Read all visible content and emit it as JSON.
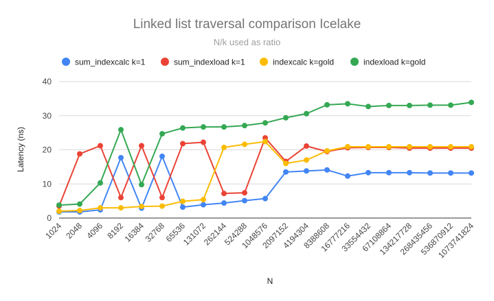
{
  "chart_data": {
    "type": "line",
    "title": "Linked list traversal comparison Icelake",
    "subtitle": "N/k used as ratio",
    "xlabel": "N",
    "ylabel": "Latency (ns)",
    "ylim": [
      0,
      40
    ],
    "yticks": [
      0,
      10,
      20,
      30,
      40
    ],
    "grid": true,
    "legend_position": "top",
    "categories": [
      "1024",
      "2048",
      "4096",
      "8192",
      "16384",
      "32768",
      "65536",
      "131072",
      "262144",
      "524288",
      "1048576",
      "2097152",
      "4194304",
      "8388608",
      "16777216",
      "33554432",
      "67108864",
      "134217728",
      "268435456",
      "536870912",
      "1073741824"
    ],
    "series": [
      {
        "name": "sum_indexcalc k=1",
        "color": "#4285f4",
        "values": [
          1.8,
          1.8,
          2.4,
          17.7,
          2.9,
          18.1,
          3.2,
          3.9,
          4.4,
          5.1,
          5.7,
          13.5,
          13.8,
          14.1,
          12.3,
          13.3,
          13.3,
          13.3,
          13.2,
          13.2,
          13.2
        ]
      },
      {
        "name": "sum_indexload k=1",
        "color": "#ea4335",
        "values": [
          3.5,
          18.8,
          21.2,
          6.0,
          21.2,
          6.0,
          21.8,
          22.2,
          7.2,
          7.4,
          23.5,
          16.6,
          21.1,
          19.5,
          20.6,
          20.7,
          20.7,
          20.5,
          20.5,
          20.5,
          20.5
        ]
      },
      {
        "name": "indexcalc k=gold",
        "color": "#fbbc04",
        "values": [
          2.0,
          2.2,
          3.0,
          3.0,
          3.4,
          3.5,
          4.9,
          5.4,
          20.7,
          21.6,
          22.4,
          16.0,
          17.0,
          19.7,
          20.9,
          20.9,
          20.9,
          20.9,
          20.9,
          20.9,
          20.9
        ]
      },
      {
        "name": "indexload k=gold",
        "color": "#34a853",
        "values": [
          3.8,
          4.1,
          10.3,
          25.9,
          9.8,
          24.7,
          26.4,
          26.7,
          26.7,
          27.1,
          27.9,
          29.4,
          30.6,
          33.2,
          33.5,
          32.7,
          33.0,
          33.0,
          33.1,
          33.1,
          33.9
        ]
      }
    ]
  }
}
